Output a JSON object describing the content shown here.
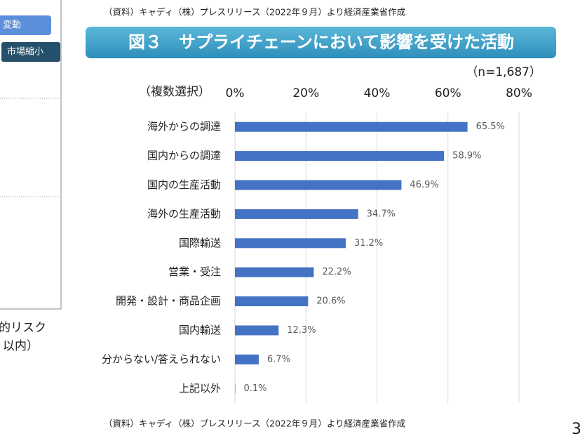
{
  "source_top": "（資料）キャディ（株）プレスリリース（2022年９月）より経済産業省作成",
  "source_bottom": "（資料）キャディ（株）プレスリリース（2022年９月）より経済産業省作成",
  "page_number": "3",
  "left_fragment": {
    "button_1": "変動",
    "button_2": "市場縮小",
    "text_1": "的リスク",
    "text_2": "以内）",
    "text_3": "）"
  },
  "chart_data": {
    "type": "bar",
    "orientation": "horizontal",
    "title": "図３　サプライチェーンにおいて影響を受けた活動",
    "sample_note": "（n=1,687）",
    "axis_note": "（複数選択）",
    "categories": [
      "海外からの調達",
      "国内からの調達",
      "国内の生産活動",
      "海外の生産活動",
      "国際輸送",
      "営業・受注",
      "開発・設計・商品企画",
      "国内輸送",
      "分からない/答えられない",
      "上記以外"
    ],
    "values": [
      65.5,
      58.9,
      46.9,
      34.7,
      31.2,
      22.2,
      20.6,
      12.3,
      6.7,
      0.1
    ],
    "value_labels": [
      "65.5%",
      "58.9%",
      "46.9%",
      "34.7%",
      "31.2%",
      "22.2%",
      "20.6%",
      "12.3%",
      "6.7%",
      "0.1%"
    ],
    "color": "#4472c4",
    "xlim": [
      0,
      80
    ],
    "xticks": [
      {
        "value": 0,
        "label": "0%"
      },
      {
        "value": 20,
        "label": "20%"
      },
      {
        "value": 40,
        "label": "40%"
      },
      {
        "value": 60,
        "label": "60%"
      },
      {
        "value": 80,
        "label": "80%"
      }
    ],
    "grid": true
  }
}
